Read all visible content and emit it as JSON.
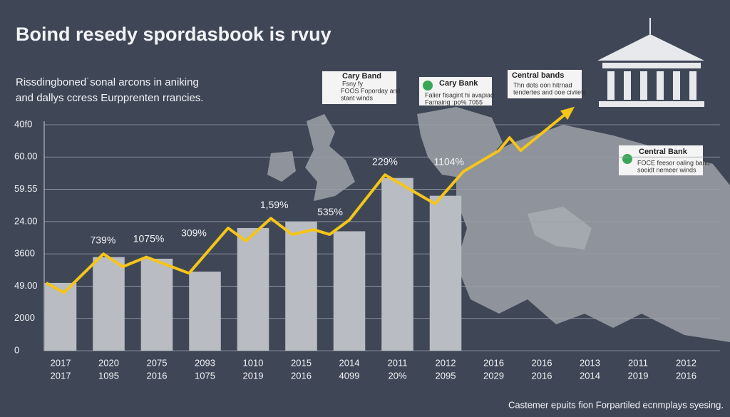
{
  "chart_data": {
    "type": "combo",
    "title": "Boind resedy spordasbook is rvuy",
    "subtitle": [
      "Rissdingboned˙sonal arcons in aniking",
      "and dallys ccress Eurpprenten rrancies."
    ],
    "footer": "Castemer epuits fion Forpartiled ecnmplays syesing.",
    "categories": [
      "2017",
      "2020",
      "2075",
      "2093",
      "1010",
      "2015",
      "2014",
      "2011",
      "2012",
      "2016",
      "2016",
      "2013",
      "2011",
      "2012"
    ],
    "categories_2": [
      "2017",
      "1095",
      "2016",
      "1075",
      "2019",
      "2016",
      "4099",
      "20%",
      "2095",
      "2029",
      "2016",
      "2014",
      "2019",
      "2016"
    ],
    "bars": {
      "color": "#b9bcc2",
      "values": [
        2.1,
        2.9,
        2.85,
        2.45,
        3.8,
        4.0,
        3.7,
        5.35,
        4.8
      ]
    },
    "line": {
      "color": "#f5c518",
      "x": [
        -0.3,
        0.07,
        0.89,
        1.29,
        1.78,
        2.67,
        3.48,
        3.85,
        4.37,
        4.81,
        5.26,
        5.59,
        6.0,
        6.74,
        7.78,
        8.37,
        9.11,
        9.33,
        9.56,
        10.59
      ],
      "values": [
        2.1,
        1.8,
        3.0,
        2.6,
        2.9,
        2.4,
        3.8,
        3.4,
        4.1,
        3.6,
        3.75,
        3.6,
        4.05,
        5.45,
        4.55,
        5.55,
        6.2,
        6.6,
        6.2,
        7.45
      ]
    },
    "annotations": [
      {
        "text": "739%",
        "x": 0.88,
        "y": 3.4
      },
      {
        "text": "1075%",
        "x": 1.83,
        "y": 3.45
      },
      {
        "text": "309%",
        "x": 2.77,
        "y": 3.63
      },
      {
        "text": "1,59%",
        "x": 4.44,
        "y": 4.5
      },
      {
        "text": "535%",
        "x": 5.6,
        "y": 4.28
      },
      {
        "text": "229%",
        "x": 6.74,
        "y": 5.83
      },
      {
        "text": "1104%",
        "x": 8.07,
        "y": 5.83
      }
    ],
    "ylim": [
      0,
      7
    ],
    "yticks": [
      {
        "value": 0,
        "label": "0"
      },
      {
        "value": 1,
        "label": "2000"
      },
      {
        "value": 2,
        "label": "49.00"
      },
      {
        "value": 3,
        "label": "3600"
      },
      {
        "value": 4,
        "label": "24.00"
      },
      {
        "value": 5,
        "label": "59.55"
      },
      {
        "value": 6,
        "label": "60.00"
      },
      {
        "value": 7,
        "label": "40f0"
      }
    ],
    "grid": true
  },
  "callouts": [
    {
      "title": "Cary Band",
      "lines": [
        "Fsny fy",
        "FOOS Foporday and",
        "stant winds"
      ]
    },
    {
      "title": "Cary Bank",
      "lines": [
        "Falier fisagint hi avapiad",
        "Farnaing :po% 7055"
      ]
    },
    {
      "title": "Central bands",
      "lines": [
        "Thn dots oon hitrnad",
        "tendertes and ooe civiiets"
      ]
    },
    {
      "title": "Central Bank",
      "lines": [
        "FOCE feesor oaling band",
        "sooidt nemeer winds"
      ]
    }
  ]
}
